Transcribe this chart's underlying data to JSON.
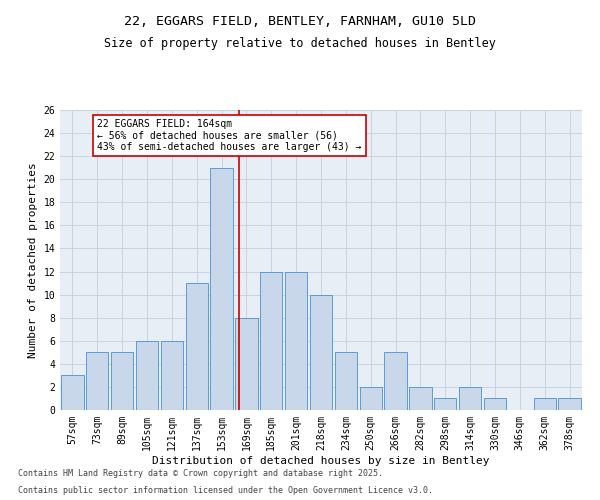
{
  "title1": "22, EGGARS FIELD, BENTLEY, FARNHAM, GU10 5LD",
  "title2": "Size of property relative to detached houses in Bentley",
  "xlabel": "Distribution of detached houses by size in Bentley",
  "ylabel": "Number of detached properties",
  "footer1": "Contains HM Land Registry data © Crown copyright and database right 2025.",
  "footer2": "Contains public sector information licensed under the Open Government Licence v3.0.",
  "categories": [
    "57sqm",
    "73sqm",
    "89sqm",
    "105sqm",
    "121sqm",
    "137sqm",
    "153sqm",
    "169sqm",
    "185sqm",
    "201sqm",
    "218sqm",
    "234sqm",
    "250sqm",
    "266sqm",
    "282sqm",
    "298sqm",
    "314sqm",
    "330sqm",
    "346sqm",
    "362sqm",
    "378sqm"
  ],
  "values": [
    3,
    5,
    5,
    6,
    6,
    11,
    21,
    8,
    12,
    12,
    10,
    5,
    2,
    5,
    2,
    1,
    2,
    1,
    0,
    1,
    1
  ],
  "bar_color": "#c8d8ea",
  "bar_edge_color": "#5b9bd5",
  "grid_color": "#c8d4e4",
  "background_color": "#e8eef6",
  "vertical_line_color": "#cc0000",
  "vertical_line_x": 6.72,
  "annotation_text": "22 EGGARS FIELD: 164sqm\n← 56% of detached houses are smaller (56)\n43% of semi-detached houses are larger (43) →",
  "annotation_box_color": "#cc0000",
  "ylim": [
    0,
    26
  ],
  "yticks": [
    0,
    2,
    4,
    6,
    8,
    10,
    12,
    14,
    16,
    18,
    20,
    22,
    24,
    26
  ],
  "title_fontsize": 9.5,
  "subtitle_fontsize": 8.5,
  "axis_label_fontsize": 8,
  "tick_fontsize": 7,
  "annotation_fontsize": 7,
  "footer_fontsize": 6
}
